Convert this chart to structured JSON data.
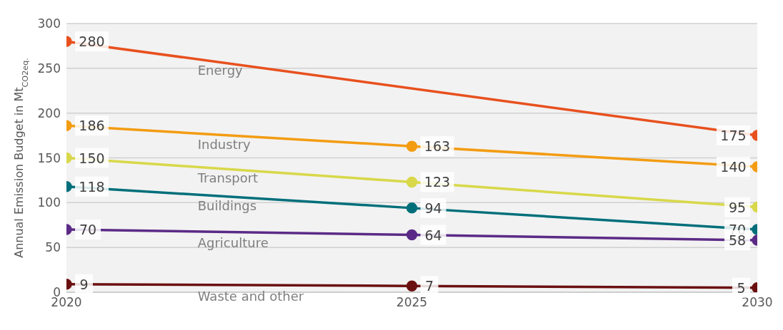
{
  "chart_data": {
    "type": "line",
    "ylabel": "Annual Emission Budget in Mt$_{CO2eq.}$",
    "xlim": [
      2020,
      2030
    ],
    "xticks": [
      2020,
      2025,
      2030
    ],
    "ylim": [
      0,
      300
    ],
    "yticks": [
      0,
      50,
      100,
      150,
      200,
      250,
      300
    ],
    "grid": "y",
    "legend": false,
    "marker": "circle",
    "line_style": "solid",
    "data_labels": true,
    "series": [
      {
        "name": "Energy",
        "color": "#e8501e",
        "x": [
          2020,
          2030
        ],
        "values": [
          280,
          175
        ]
      },
      {
        "name": "Industry",
        "color": "#f39c12",
        "x": [
          2020,
          2025,
          2030
        ],
        "values": [
          186,
          163,
          140
        ]
      },
      {
        "name": "Transport",
        "color": "#d8d84a",
        "x": [
          2020,
          2025,
          2030
        ],
        "values": [
          150,
          123,
          95
        ]
      },
      {
        "name": "Buildings",
        "color": "#006f7a",
        "x": [
          2020,
          2025,
          2030
        ],
        "values": [
          118,
          94,
          70
        ]
      },
      {
        "name": "Agriculture",
        "color": "#5b2a86",
        "x": [
          2020,
          2025,
          2030
        ],
        "values": [
          70,
          64,
          58
        ]
      },
      {
        "name": "Waste and other",
        "color": "#6b1010",
        "x": [
          2020,
          2025,
          2030
        ],
        "values": [
          9,
          7,
          5
        ]
      }
    ]
  }
}
